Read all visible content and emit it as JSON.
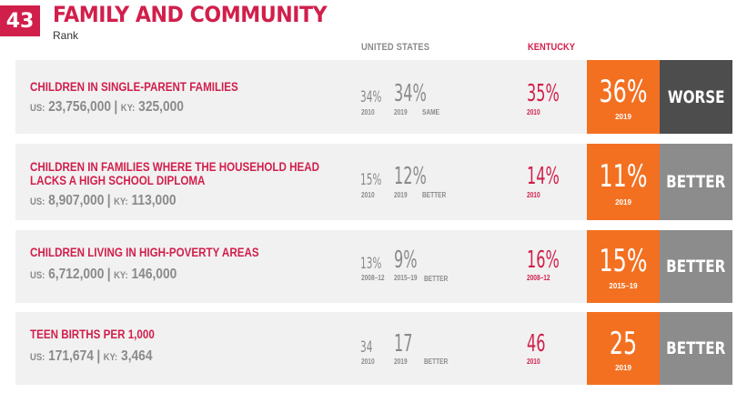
{
  "header": {
    "rank": "43",
    "title": "FAMILY AND COMMUNITY",
    "rank_label": "Rank",
    "col_us": "UNITED STATES",
    "col_ky": "KENTUCKY"
  },
  "rows": [
    {
      "label_line1": "CHILDREN IN SINGLE-PARENT FAMILIES",
      "label_line2": "",
      "us_prefix": "US:",
      "us_count": "23,756,000",
      "ky_prefix": "KY:",
      "ky_count": "325,000",
      "us_base_value": "34%",
      "us_base_year": "2010",
      "us_value": "34%",
      "us_year": "2019",
      "us_trend": "SAME",
      "ky_base_value": "35%",
      "ky_base_year": "2010",
      "ky_value": "36%",
      "ky_year": "2019",
      "verdict": "WORSE"
    },
    {
      "label_line1": "CHILDREN IN FAMILIES WHERE THE HOUSEHOLD HEAD",
      "label_line2": "LACKS A HIGH SCHOOL DIPLOMA",
      "us_prefix": "US:",
      "us_count": "8,907,000",
      "ky_prefix": "KY:",
      "ky_count": "113,000",
      "us_base_value": "15%",
      "us_base_year": "2010",
      "us_value": "12%",
      "us_year": "2019",
      "us_trend": "BETTER",
      "ky_base_value": "14%",
      "ky_base_year": "2010",
      "ky_value": "11%",
      "ky_year": "2019",
      "verdict": "BETTER"
    },
    {
      "label_line1": "CHILDREN LIVING IN HIGH-POVERTY AREAS",
      "label_line2": "",
      "us_prefix": "US:",
      "us_count": "6,712,000",
      "ky_prefix": "KY:",
      "ky_count": "146,000",
      "us_base_value": "13%",
      "us_base_year": "2008–12",
      "us_value": "9%",
      "us_year": "2015–19",
      "us_trend": "BETTER",
      "ky_base_value": "16%",
      "ky_base_year": "2008–12",
      "ky_value": "15%",
      "ky_year": "2015–19",
      "verdict": "BETTER"
    },
    {
      "label_line1": "TEEN BIRTHS PER 1,000",
      "label_line2": "",
      "us_prefix": "US:",
      "us_count": "171,674",
      "ky_prefix": "KY:",
      "ky_count": "3,464",
      "us_base_value": "34",
      "us_base_year": "2010",
      "us_value": "17",
      "us_year": "2019",
      "us_trend": "BETTER",
      "ky_base_value": "46",
      "ky_base_year": "2010",
      "ky_value": "25",
      "ky_year": "2019",
      "verdict": "BETTER"
    }
  ]
}
